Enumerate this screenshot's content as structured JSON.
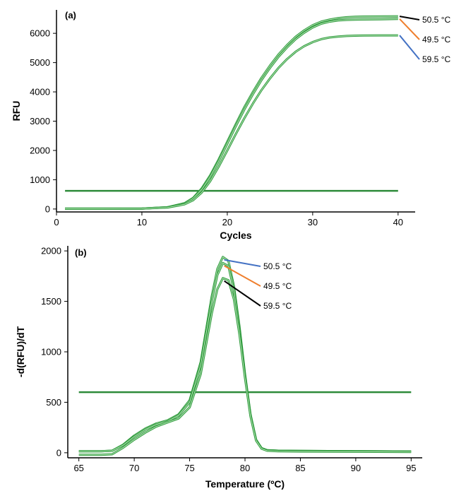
{
  "chart_data": [
    {
      "type": "line",
      "panel_label": "(a)",
      "xlabel": "Cycles",
      "ylabel": "RFU",
      "xlim": [
        0,
        42
      ],
      "ylim": [
        -100,
        6800
      ],
      "xticks": [
        0,
        10,
        20,
        30,
        40
      ],
      "yticks": [
        0,
        1000,
        2000,
        3000,
        4000,
        5000,
        6000
      ],
      "grid": false,
      "line_color": "#3fae49",
      "threshold": {
        "value": 620,
        "x": [
          1,
          40
        ]
      },
      "series": [
        {
          "name": "50.5 °C",
          "legend_color": "#000000",
          "x": [
            1,
            5,
            10,
            13,
            15,
            16,
            17,
            18,
            19,
            20,
            21,
            22,
            23,
            24,
            25,
            26,
            27,
            28,
            29,
            30,
            31,
            32,
            33,
            34,
            35,
            36,
            38,
            40
          ],
          "y": [
            10,
            10,
            15,
            60,
            200,
            380,
            700,
            1150,
            1700,
            2300,
            2900,
            3480,
            4000,
            4480,
            4900,
            5280,
            5600,
            5880,
            6100,
            6280,
            6400,
            6470,
            6520,
            6550,
            6565,
            6570,
            6575,
            6580
          ]
        },
        {
          "name": "49.5 °C",
          "legend_color": "#ef7f2e",
          "x": [
            1,
            5,
            10,
            13,
            15,
            16,
            17,
            18,
            19,
            20,
            21,
            22,
            23,
            24,
            25,
            26,
            27,
            28,
            29,
            30,
            31,
            32,
            33,
            34,
            35,
            36,
            38,
            40
          ],
          "y": [
            10,
            10,
            15,
            60,
            190,
            360,
            660,
            1100,
            1640,
            2230,
            2830,
            3400,
            3920,
            4400,
            4820,
            5200,
            5520,
            5800,
            6020,
            6200,
            6330,
            6400,
            6440,
            6460,
            6470,
            6475,
            6480,
            6490
          ]
        },
        {
          "name": "59.5 °C",
          "legend_color": "#4472c4",
          "x": [
            1,
            5,
            10,
            13,
            15,
            16,
            17,
            18,
            19,
            20,
            21,
            22,
            23,
            24,
            25,
            26,
            27,
            28,
            29,
            30,
            31,
            32,
            33,
            34,
            35,
            36,
            38,
            40
          ],
          "y": [
            10,
            10,
            15,
            50,
            160,
            300,
            560,
            950,
            1450,
            2000,
            2560,
            3100,
            3600,
            4060,
            4460,
            4820,
            5120,
            5370,
            5560,
            5700,
            5800,
            5860,
            5890,
            5910,
            5920,
            5925,
            5930,
            5930
          ]
        }
      ]
    },
    {
      "type": "line",
      "panel_label": "(b)",
      "xlabel": "Temperature (ºC)",
      "ylabel": "-d(RFU)/dT",
      "xlim": [
        64,
        96
      ],
      "ylim": [
        -50,
        2050
      ],
      "xticks": [
        65,
        70,
        75,
        80,
        85,
        90,
        95
      ],
      "yticks": [
        0,
        500,
        1000,
        1500,
        2000
      ],
      "grid": false,
      "line_color": "#3fae49",
      "threshold": {
        "value": 600,
        "x": [
          65,
          95
        ]
      },
      "series": [
        {
          "name": "50.5 °C",
          "legend_color": "#4472c4",
          "x": [
            65,
            66,
            67,
            68,
            69,
            70,
            71,
            72,
            73,
            74,
            75,
            76,
            77,
            77.5,
            78,
            78.5,
            79,
            79.5,
            80,
            80.5,
            81,
            81.5,
            82,
            83,
            85,
            90,
            95
          ],
          "y": [
            15,
            15,
            15,
            20,
            80,
            170,
            240,
            290,
            320,
            380,
            520,
            900,
            1550,
            1820,
            1940,
            1900,
            1650,
            1250,
            780,
            380,
            130,
            45,
            25,
            20,
            18,
            15,
            12
          ]
        },
        {
          "name": "49.5 °C",
          "legend_color": "#ef7f2e",
          "x": [
            65,
            66,
            67,
            68,
            69,
            70,
            71,
            72,
            73,
            74,
            75,
            76,
            77,
            77.5,
            78,
            78.5,
            79,
            79.5,
            80,
            80.5,
            81,
            81.5,
            82,
            83,
            85,
            90,
            95
          ],
          "y": [
            15,
            15,
            15,
            20,
            75,
            160,
            230,
            280,
            310,
            370,
            500,
            870,
            1500,
            1760,
            1880,
            1850,
            1610,
            1220,
            760,
            370,
            125,
            45,
            25,
            20,
            18,
            15,
            12
          ]
        },
        {
          "name": "59.5 °C",
          "legend_color": "#000000",
          "x": [
            65,
            66,
            67,
            68,
            69,
            70,
            71,
            72,
            73,
            74,
            75,
            76,
            77,
            77.5,
            78,
            78.5,
            79,
            79.5,
            80,
            80.5,
            81,
            81.5,
            82,
            83,
            85,
            90,
            95
          ],
          "y": [
            -20,
            -20,
            -20,
            -15,
            50,
            130,
            200,
            260,
            300,
            340,
            450,
            780,
            1380,
            1620,
            1730,
            1710,
            1520,
            1170,
            740,
            360,
            120,
            40,
            20,
            15,
            12,
            10,
            8
          ]
        }
      ]
    }
  ]
}
